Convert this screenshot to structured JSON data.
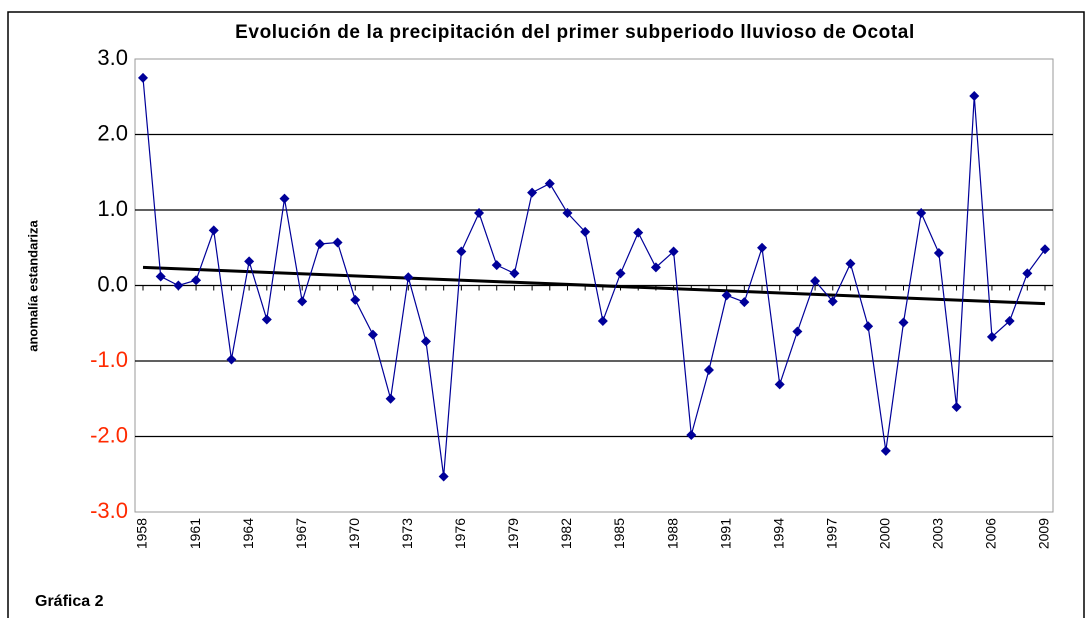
{
  "chart_data": {
    "type": "line",
    "title": "Evolución de la precipitación del primer subperiodo lluvioso de Ocotal",
    "ylabel": "anomalía estandariza",
    "caption": "Gráfica 2",
    "x": [
      1958,
      1959,
      1960,
      1961,
      1962,
      1963,
      1964,
      1965,
      1966,
      1967,
      1968,
      1969,
      1970,
      1971,
      1972,
      1973,
      1974,
      1975,
      1976,
      1977,
      1978,
      1979,
      1980,
      1981,
      1982,
      1983,
      1984,
      1985,
      1986,
      1987,
      1988,
      1989,
      1990,
      1991,
      1992,
      1993,
      1994,
      1995,
      1996,
      1997,
      1998,
      1999,
      2000,
      2001,
      2002,
      2003,
      2004,
      2005,
      2006,
      2007,
      2008,
      2009
    ],
    "series": [
      {
        "color": "#000099",
        "values": [
          2.75,
          0.12,
          0.0,
          0.07,
          0.73,
          -0.98,
          0.32,
          -0.45,
          1.15,
          -0.21,
          0.55,
          0.57,
          -0.19,
          -0.65,
          -1.5,
          0.11,
          -0.74,
          -2.53,
          0.45,
          0.96,
          0.27,
          0.16,
          1.23,
          1.35,
          0.96,
          0.71,
          -0.47,
          0.16,
          0.7,
          0.24,
          0.45,
          -1.98,
          -1.12,
          -0.13,
          -0.22,
          0.5,
          -1.31,
          -0.61,
          0.06,
          -0.21,
          0.29,
          -0.54,
          -2.19,
          -0.49,
          0.96,
          0.43,
          -1.61,
          2.51,
          -0.68,
          -0.47,
          0.16,
          0.48
        ]
      }
    ],
    "trend_line": {
      "x": [
        1958,
        2009
      ],
      "values": [
        0.24,
        -0.24
      ],
      "color": "#000000"
    },
    "xlim": [
      1958,
      2009
    ],
    "xticks": [
      1958,
      1961,
      1964,
      1967,
      1970,
      1973,
      1976,
      1979,
      1982,
      1985,
      1988,
      1991,
      1994,
      1997,
      2000,
      2003,
      2006,
      2009
    ],
    "ylim": [
      -3,
      3
    ],
    "yticks": [
      {
        "value": -3,
        "label": "-3.0"
      },
      {
        "value": -2,
        "label": "-2.0"
      },
      {
        "value": -1,
        "label": "-1.0"
      },
      {
        "value": 0,
        "label": "0.0"
      },
      {
        "value": 1,
        "label": "1.0"
      },
      {
        "value": 2,
        "label": "2.0"
      },
      {
        "value": 3,
        "label": "3.0"
      }
    ],
    "negative_tick_color": "#ff2a00",
    "grid": true
  }
}
